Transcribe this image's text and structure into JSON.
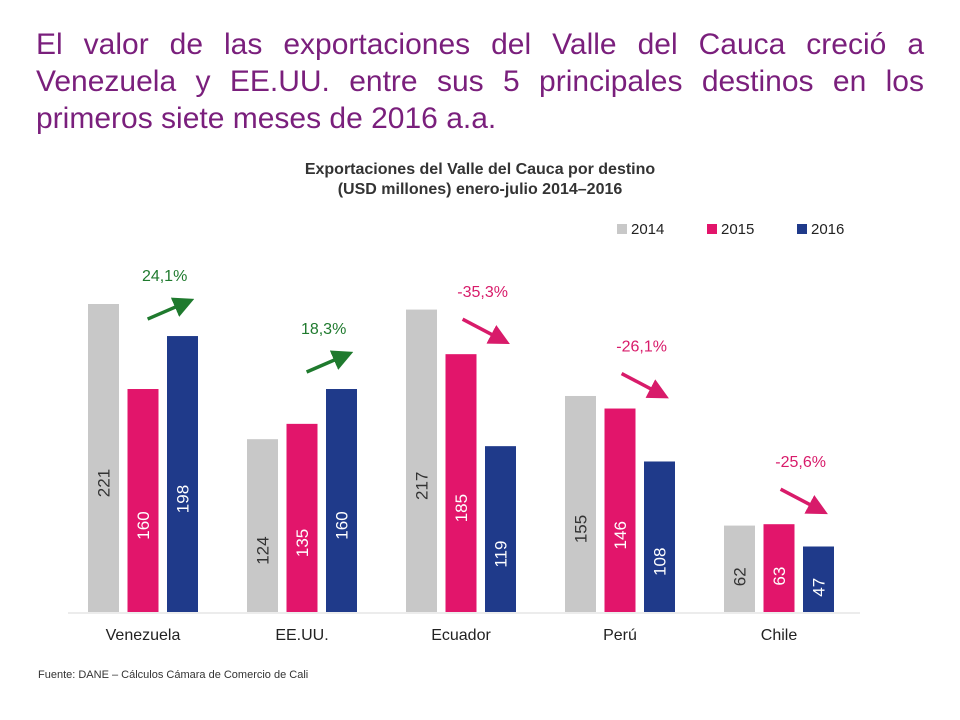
{
  "slide_title": "El valor de las exportaciones del Valle del Cauca creció a Venezuela y EE.UU. entre sus 5 principales destinos en los primeros siete meses de 2016 a.a.",
  "source": "Fuente: DANE – Cálculos Cámara de Comercio de Cali",
  "chart_data": {
    "type": "bar",
    "title": "Exportaciones del Valle del Cauca por destino",
    "subtitle": "(USD millones) enero-julio 2014–2016",
    "categories": [
      "Venezuela",
      "EE.UU.",
      "Ecuador",
      "Perú",
      "Chile"
    ],
    "series": [
      {
        "name": "2014",
        "color": "#c8c8c8",
        "values": [
          221,
          124,
          217,
          155,
          62
        ]
      },
      {
        "name": "2015",
        "color": "#e2156b",
        "values": [
          160,
          135,
          185,
          146,
          63
        ]
      },
      {
        "name": "2016",
        "color": "#1f3a8a",
        "values": [
          198,
          160,
          119,
          108,
          47
        ]
      }
    ],
    "ylim": [
      0,
      225
    ],
    "grid": false,
    "legend_position": "top-right",
    "annotations": [
      {
        "text": "24,1%",
        "category": "Venezuela",
        "direction": "up",
        "color": "#1f7a2e"
      },
      {
        "text": "18,3%",
        "category": "EE.UU.",
        "direction": "up",
        "color": "#1f7a2e"
      },
      {
        "text": "-35,3%",
        "category": "Ecuador",
        "direction": "down",
        "color": "#d81b6a"
      },
      {
        "text": "-26,1%",
        "category": "Perú",
        "direction": "down",
        "color": "#d81b6a"
      },
      {
        "text": "-25,6%",
        "category": "Chile",
        "direction": "down",
        "color": "#d81b6a"
      }
    ]
  }
}
